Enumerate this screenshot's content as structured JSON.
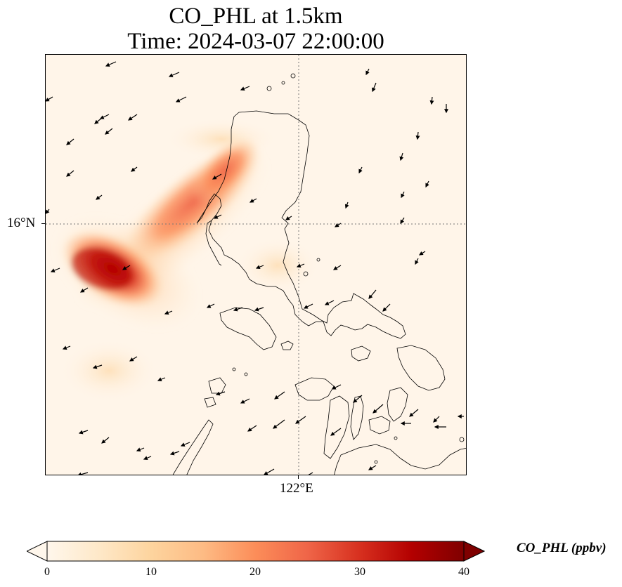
{
  "title": {
    "line1": "CO_PHL at 1.5km",
    "line2": "Time: 2024-03-07 22:00:00"
  },
  "map": {
    "gridline_lat_label": "16°N",
    "gridline_lon_label": "122°E",
    "field_variable": "CO_PHL",
    "colormap": "OrRd",
    "background_color": "#fff5e9",
    "coastline_color": "#000000"
  },
  "colorbar": {
    "label": "CO_PHL (ppbv)",
    "min": 0,
    "max": 40,
    "extend": "both",
    "ticks": [
      "0",
      "10",
      "20",
      "30",
      "40"
    ],
    "colors": [
      "#fff7ec",
      "#fee8c8",
      "#fdd49e",
      "#fdbb84",
      "#fc8d59",
      "#ef6548",
      "#d7301f",
      "#b30000",
      "#7f0000"
    ]
  }
}
